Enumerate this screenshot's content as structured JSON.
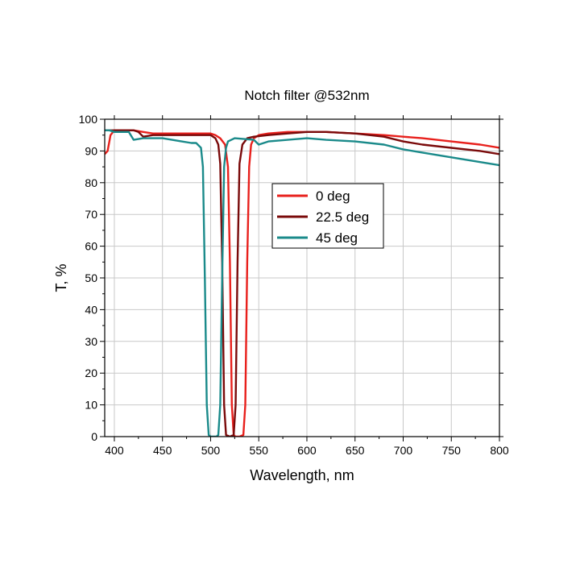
{
  "chart_data": {
    "type": "line",
    "title": "Notch filter @532nm",
    "xlabel": "Wavelength, nm",
    "ylabel": "T, %",
    "xlim": [
      390,
      800
    ],
    "ylim": [
      0,
      100
    ],
    "xticks": [
      400,
      450,
      500,
      550,
      600,
      650,
      700,
      750,
      800
    ],
    "yticks": [
      0,
      10,
      20,
      30,
      40,
      50,
      60,
      70,
      80,
      90,
      100
    ],
    "grid": true,
    "legend_position": "center-right",
    "series": [
      {
        "name": "0 deg",
        "color": "#e8201c",
        "x": [
          390,
          393,
          396,
          400,
          410,
          420,
          430,
          440,
          450,
          470,
          490,
          500,
          505,
          510,
          515,
          518,
          520,
          522,
          524,
          526,
          530,
          534,
          536,
          538,
          540,
          542,
          545,
          550,
          560,
          580,
          600,
          620,
          650,
          680,
          700,
          720,
          750,
          780,
          800
        ],
        "y": [
          89,
          90,
          95,
          96.5,
          96.5,
          96.5,
          96,
          95.5,
          95.5,
          95.5,
          95.5,
          95.5,
          95,
          94,
          92,
          85,
          55,
          10,
          0.5,
          0,
          0,
          0.5,
          10,
          55,
          85,
          92,
          94,
          95,
          95.5,
          96,
          96,
          96,
          95.5,
          95,
          94.5,
          94,
          93,
          92,
          91
        ]
      },
      {
        "name": "22.5 deg",
        "color": "#7a0a0a",
        "x": [
          390,
          395,
          400,
          410,
          420,
          425,
          430,
          440,
          450,
          470,
          490,
          500,
          505,
          508,
          510,
          512,
          514,
          516,
          520,
          524,
          526,
          528,
          530,
          533,
          538,
          545,
          560,
          580,
          600,
          620,
          650,
          680,
          700,
          720,
          750,
          780,
          800
        ],
        "y": [
          96.5,
          96.5,
          96.5,
          96.5,
          96.5,
          96,
          94.5,
          95,
          95,
          95,
          95,
          95,
          94,
          92,
          86,
          55,
          10,
          0.5,
          0,
          0.5,
          10,
          55,
          86,
          92,
          94,
          94.5,
          95,
          95.5,
          96,
          96,
          95.5,
          94.5,
          93,
          92,
          91,
          90,
          89
        ]
      },
      {
        "name": "45 deg",
        "color": "#1a8a8a",
        "x": [
          390,
          395,
          400,
          410,
          415,
          420,
          430,
          450,
          470,
          480,
          485,
          490,
          492,
          494,
          496,
          498,
          500,
          506,
          508,
          510,
          512,
          514,
          516,
          518,
          525,
          545,
          550,
          560,
          580,
          600,
          620,
          650,
          680,
          700,
          720,
          750,
          780,
          800
        ],
        "y": [
          96.5,
          96.5,
          96,
          96,
          96,
          93.5,
          94,
          94,
          93,
          92.5,
          92.5,
          91,
          85,
          50,
          10,
          0.5,
          0,
          0,
          0.5,
          10,
          50,
          85,
          91,
          93,
          94,
          93.5,
          92,
          93,
          93.5,
          94,
          93.5,
          93,
          92,
          90.5,
          89.5,
          88,
          86.5,
          85.5
        ]
      }
    ]
  }
}
